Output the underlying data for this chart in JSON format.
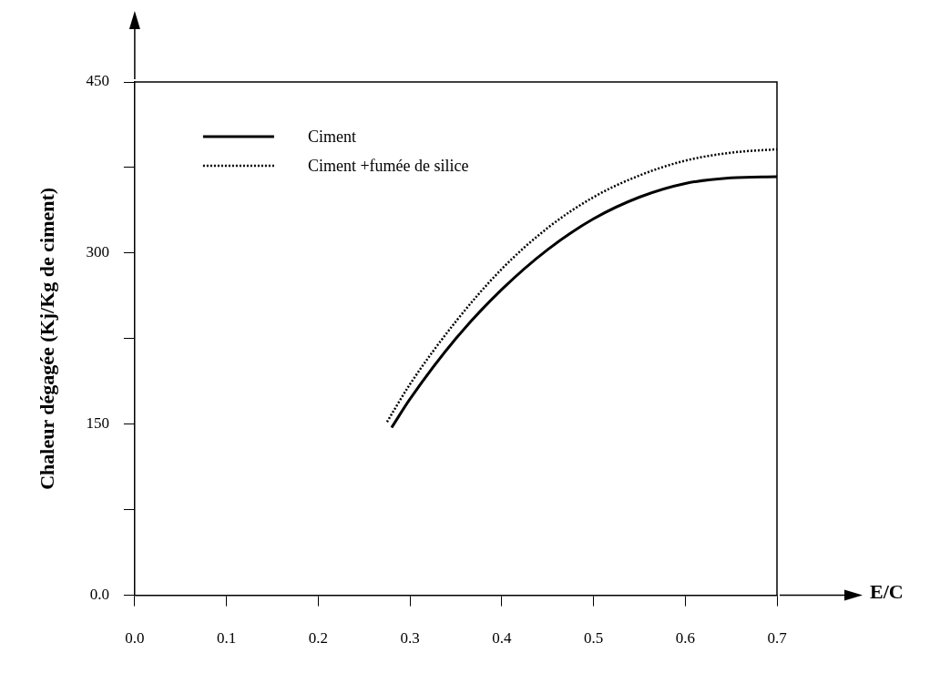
{
  "chart_data": {
    "type": "line",
    "xlabel": "E/C",
    "ylabel": "Chaleur dégagée (Kj/Kg de ciment)",
    "xlim": [
      0,
      0.7
    ],
    "ylim": [
      0,
      450
    ],
    "xticks": [
      {
        "value": 0,
        "label": "0.0"
      },
      0.1,
      0.2,
      0.3,
      0.4,
      0.5,
      0.6,
      0.7
    ],
    "yticks": [
      {
        "value": 0,
        "label": "0.0"
      },
      {
        "value": 75,
        "label": null
      },
      150,
      {
        "value": 225,
        "label": null
      },
      300,
      {
        "value": 375,
        "label": null
      },
      450
    ],
    "grid": false,
    "legend": "top left",
    "marker": "none",
    "series": [
      {
        "name": "Ciment",
        "color": "#000000",
        "line_style": "solid",
        "x": [
          0.28,
          0.3,
          0.35,
          0.4,
          0.45,
          0.5,
          0.55,
          0.6,
          0.65,
          0.7
        ],
        "values": [
          147,
          172,
          225,
          268,
          303,
          330,
          349,
          361,
          366,
          367
        ]
      },
      {
        "name": "Ciment +fumée de silice",
        "color": "#000000",
        "line_style": "dotted",
        "x": [
          0.275,
          0.3,
          0.35,
          0.4,
          0.45,
          0.5,
          0.55,
          0.6,
          0.65,
          0.7
        ],
        "values": [
          152,
          185,
          240,
          286,
          322,
          349,
          368,
          381,
          388,
          391
        ]
      }
    ]
  }
}
